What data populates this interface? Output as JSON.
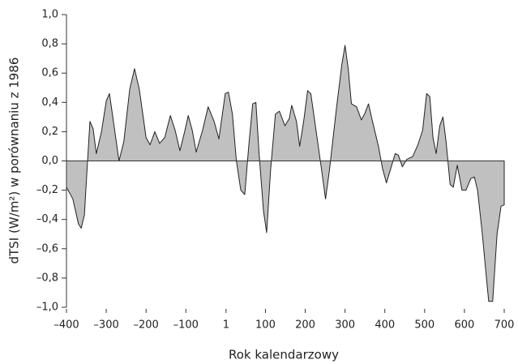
{
  "chart_data": {
    "type": "area",
    "x_label": "Rok kalendarzowy",
    "y_label": "dTSI (W/m²) w porównaniu z 1986",
    "color": "#c0c0c0",
    "x": [
      -400,
      -384,
      -370,
      -363,
      -355,
      -347,
      -341,
      -333,
      -325,
      -312,
      -300,
      -292,
      -282,
      -268,
      -256,
      -241,
      -229,
      -217,
      -200,
      -190,
      -178,
      -166,
      -153,
      -139,
      -127,
      -115,
      -103,
      -94,
      -84,
      -74,
      -58,
      -44,
      -29,
      -17,
      -1,
      7,
      17,
      27,
      38,
      48,
      58,
      68,
      76,
      84,
      95,
      103,
      113,
      125,
      135,
      149,
      160,
      166,
      178,
      186,
      196,
      206,
      214,
      227,
      241,
      251,
      261,
      278,
      292,
      300,
      308,
      316,
      329,
      341,
      349,
      359,
      369,
      384,
      394,
      404,
      414,
      426,
      434,
      444,
      455,
      470,
      483,
      495,
      505,
      513,
      521,
      529,
      538,
      546,
      554,
      564,
      572,
      582,
      594,
      604,
      616,
      625,
      633,
      645,
      655,
      661,
      671,
      682,
      692,
      700
    ],
    "values": [
      -0.18,
      -0.26,
      -0.43,
      -0.46,
      -0.37,
      0,
      0.27,
      0.22,
      0.05,
      0.2,
      0.41,
      0.46,
      0.27,
      0,
      0.13,
      0.49,
      0.63,
      0.49,
      0.16,
      0.11,
      0.2,
      0.12,
      0.16,
      0.31,
      0.21,
      0.07,
      0.2,
      0.31,
      0.21,
      0.06,
      0.21,
      0.37,
      0.27,
      0.15,
      0.46,
      0.47,
      0.32,
      0,
      -0.2,
      -0.23,
      0.1,
      0.39,
      0.4,
      0.05,
      -0.34,
      -0.49,
      -0.06,
      0.32,
      0.34,
      0.24,
      0.29,
      0.38,
      0.27,
      0.1,
      0.27,
      0.48,
      0.46,
      0.21,
      -0.06,
      -0.26,
      -0.06,
      0.35,
      0.66,
      0.79,
      0.63,
      0.39,
      0.37,
      0.28,
      0.32,
      0.39,
      0.27,
      0.1,
      -0.05,
      -0.15,
      -0.06,
      0.05,
      0.04,
      -0.04,
      0.01,
      0.03,
      0.11,
      0.21,
      0.46,
      0.44,
      0.16,
      0.05,
      0.24,
      0.3,
      0.13,
      -0.16,
      -0.18,
      -0.03,
      -0.2,
      -0.2,
      -0.12,
      -0.11,
      -0.2,
      -0.5,
      -0.79,
      -0.96,
      -0.96,
      -0.5,
      -0.31,
      -0.3
    ],
    "xlim": [
      -400,
      700
    ],
    "xticks": [
      {
        "value": -400,
        "label": "–400"
      },
      {
        "value": -300,
        "label": "–300"
      },
      {
        "value": -200,
        "label": "–200"
      },
      {
        "value": -100,
        "label": "–100"
      },
      1,
      100,
      200,
      300,
      400,
      500,
      600,
      700
    ],
    "ylim": [
      -1,
      1
    ],
    "yticks": [
      {
        "value": 1,
        "label": "1,0"
      },
      {
        "value": 0.8,
        "label": "0,8"
      },
      {
        "value": 0.6,
        "label": "0,6"
      },
      {
        "value": 0.4,
        "label": "0,4"
      },
      {
        "value": 0.2,
        "label": "0,2"
      },
      {
        "value": 0,
        "label": "0,0"
      },
      {
        "value": -0.2,
        "label": "–0,2"
      },
      {
        "value": -0.4,
        "label": "–0,4"
      },
      {
        "value": -0.6,
        "label": "–0,6"
      },
      {
        "value": -0.8,
        "label": "–0,8"
      },
      {
        "value": -1,
        "label": "–1,0"
      }
    ]
  }
}
